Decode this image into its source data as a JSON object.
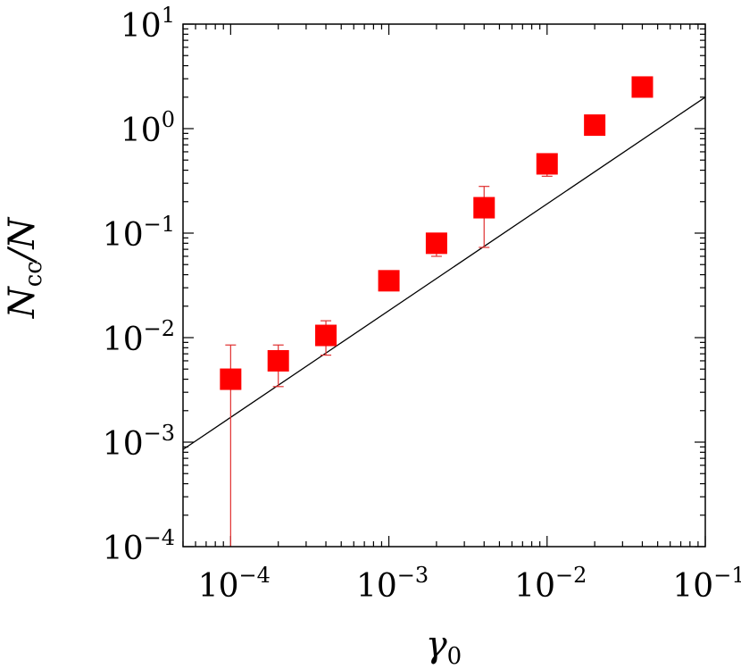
{
  "chart_data": {
    "type": "scatter",
    "title": "",
    "xlabel": {
      "base": "γ",
      "sub": "0"
    },
    "ylabel": {
      "base": "N",
      "sub": "cc",
      "tail": "/N"
    },
    "x_scale": "log",
    "y_scale": "log",
    "xlim": [
      5e-05,
      0.1
    ],
    "ylim": [
      0.0001,
      10
    ],
    "grid": false,
    "colors": {
      "marker": "#ff0000",
      "errorbar": "#e03030",
      "fit_line": "#000000",
      "axes": "#000000"
    },
    "x_ticks": [
      {
        "value": 0.0001,
        "base": "10",
        "exp": "−4"
      },
      {
        "value": 0.001,
        "base": "10",
        "exp": "−3"
      },
      {
        "value": 0.01,
        "base": "10",
        "exp": "−2"
      },
      {
        "value": 0.1,
        "base": "10",
        "exp": "−1"
      }
    ],
    "y_ticks": [
      {
        "value": 0.0001,
        "base": "10",
        "exp": "−4"
      },
      {
        "value": 0.001,
        "base": "10",
        "exp": "−3"
      },
      {
        "value": 0.01,
        "base": "10",
        "exp": "−2"
      },
      {
        "value": 0.1,
        "base": "10",
        "exp": "−1"
      },
      {
        "value": 1,
        "base": "10",
        "exp": "0"
      },
      {
        "value": 10,
        "base": "10",
        "exp": "1"
      }
    ],
    "points": [
      {
        "x": 0.0001,
        "y": 0.004,
        "err_low": 1e-05,
        "err_high": 0.0085
      },
      {
        "x": 0.0002,
        "y": 0.006,
        "err_low": 0.0034,
        "err_high": 0.0085
      },
      {
        "x": 0.0004,
        "y": 0.0105,
        "err_low": 0.0068,
        "err_high": 0.0145
      },
      {
        "x": 0.001,
        "y": 0.035
      },
      {
        "x": 0.002,
        "y": 0.08,
        "err_low": 0.06,
        "err_high": 0.095
      },
      {
        "x": 0.004,
        "y": 0.175,
        "err_low": 0.073,
        "err_high": 0.28
      },
      {
        "x": 0.01,
        "y": 0.46,
        "err_low": 0.35,
        "err_high": 0.5
      },
      {
        "x": 0.02,
        "y": 1.08
      },
      {
        "x": 0.04,
        "y": 2.5
      }
    ],
    "fit_line": {
      "type": "power_law",
      "points": [
        [
          5e-05,
          0.00085
        ],
        [
          0.1,
          2.0
        ]
      ]
    }
  }
}
